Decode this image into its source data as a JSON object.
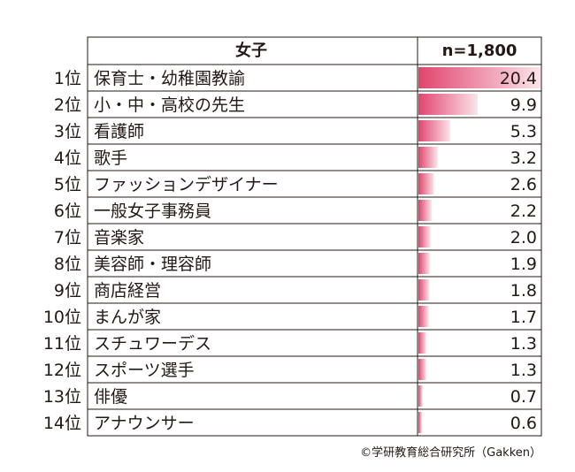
{
  "chart_data": {
    "type": "bar",
    "header_label": "女子",
    "header_n": "n=1,800",
    "credit": "©学研教育総合研究所（Gakken）",
    "bar_color": "#e0456e",
    "rows": [
      {
        "rank": "1位",
        "label": "保育士・幼稚園教諭",
        "value": 20.4,
        "value_text": "20.4"
      },
      {
        "rank": "2位",
        "label": "小・中・高校の先生",
        "value": 9.9,
        "value_text": "9.9"
      },
      {
        "rank": "3位",
        "label": "看護師",
        "value": 5.3,
        "value_text": "5.3"
      },
      {
        "rank": "4位",
        "label": "歌手",
        "value": 3.2,
        "value_text": "3.2"
      },
      {
        "rank": "5位",
        "label": "ファッションデザイナー",
        "value": 2.6,
        "value_text": "2.6"
      },
      {
        "rank": "6位",
        "label": "一般女子事務員",
        "value": 2.2,
        "value_text": "2.2"
      },
      {
        "rank": "7位",
        "label": "音楽家",
        "value": 2.0,
        "value_text": "2.0"
      },
      {
        "rank": "8位",
        "label": "美容師・理容師",
        "value": 1.9,
        "value_text": "1.9"
      },
      {
        "rank": "9位",
        "label": "商店経営",
        "value": 1.8,
        "value_text": "1.8"
      },
      {
        "rank": "10位",
        "label": "まんが家",
        "value": 1.7,
        "value_text": "1.7"
      },
      {
        "rank": "11位",
        "label": "スチュワーデス",
        "value": 1.3,
        "value_text": "1.3"
      },
      {
        "rank": "12位",
        "label": "スポーツ選手",
        "value": 1.3,
        "value_text": "1.3"
      },
      {
        "rank": "13位",
        "label": "俳優",
        "value": 0.7,
        "value_text": "0.7"
      },
      {
        "rank": "14位",
        "label": "アナウンサー",
        "value": 0.6,
        "value_text": "0.6"
      }
    ],
    "xlim": [
      0,
      20.4
    ]
  }
}
